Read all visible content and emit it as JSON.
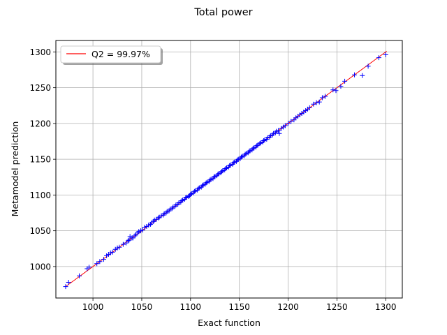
{
  "chart_data": {
    "type": "scatter",
    "title": "Total power",
    "xlabel": "Exact function",
    "ylabel": "Metamodel prediction",
    "xlim": [
      962,
      1317
    ],
    "ylim": [
      956,
      1316
    ],
    "xticks": [
      1000,
      1050,
      1100,
      1150,
      1200,
      1250,
      1300
    ],
    "yticks": [
      1000,
      1050,
      1100,
      1150,
      1200,
      1250,
      1300
    ],
    "grid": true,
    "legend": {
      "placement": "top-left",
      "entries": [
        {
          "label": "Q2 = 99.97%",
          "color": "#ff0000"
        }
      ]
    },
    "reference_line": {
      "x": [
        972,
        1301
      ],
      "y": [
        972,
        1301
      ],
      "color": "#ff0000"
    },
    "series": [
      {
        "marker": "+",
        "color": "#0000ff",
        "points": [
          [
            972,
            972
          ],
          [
            975,
            978
          ],
          [
            986,
            987
          ],
          [
            994,
            997
          ],
          [
            996,
            999
          ],
          [
            1004,
            1004
          ],
          [
            1007,
            1007
          ],
          [
            1011,
            1010
          ],
          [
            1014,
            1015
          ],
          [
            1016,
            1017
          ],
          [
            1018,
            1019
          ],
          [
            1020,
            1020
          ],
          [
            1023,
            1024
          ],
          [
            1025,
            1026
          ],
          [
            1027,
            1027
          ],
          [
            1031,
            1031
          ],
          [
            1034,
            1033
          ],
          [
            1036,
            1036
          ],
          [
            1037,
            1037
          ],
          [
            1038,
            1042
          ],
          [
            1040,
            1040
          ],
          [
            1041,
            1040
          ],
          [
            1043,
            1043
          ],
          [
            1044,
            1045
          ],
          [
            1046,
            1047
          ],
          [
            1047,
            1049
          ],
          [
            1049,
            1050
          ],
          [
            1051,
            1051
          ],
          [
            1053,
            1055
          ],
          [
            1055,
            1056
          ],
          [
            1057,
            1058
          ],
          [
            1059,
            1059
          ],
          [
            1060,
            1061
          ],
          [
            1062,
            1063
          ],
          [
            1063,
            1065
          ],
          [
            1065,
            1066
          ],
          [
            1067,
            1068
          ],
          [
            1068,
            1069
          ],
          [
            1070,
            1071
          ],
          [
            1072,
            1072
          ],
          [
            1073,
            1074
          ],
          [
            1075,
            1075
          ],
          [
            1076,
            1077
          ],
          [
            1078,
            1078
          ],
          [
            1079,
            1080
          ],
          [
            1081,
            1081
          ],
          [
            1082,
            1083
          ],
          [
            1084,
            1084
          ],
          [
            1085,
            1086
          ],
          [
            1087,
            1087
          ],
          [
            1088,
            1089
          ],
          [
            1090,
            1090
          ],
          [
            1091,
            1092
          ],
          [
            1092,
            1093
          ],
          [
            1094,
            1094
          ],
          [
            1095,
            1096
          ],
          [
            1096,
            1097
          ],
          [
            1098,
            1098
          ],
          [
            1099,
            1099
          ],
          [
            1100,
            1101
          ],
          [
            1101,
            1102
          ],
          [
            1103,
            1103
          ],
          [
            1104,
            1105
          ],
          [
            1105,
            1106
          ],
          [
            1107,
            1107
          ],
          [
            1108,
            1109
          ],
          [
            1109,
            1110
          ],
          [
            1111,
            1111
          ],
          [
            1112,
            1113
          ],
          [
            1113,
            1114
          ],
          [
            1115,
            1115
          ],
          [
            1116,
            1117
          ],
          [
            1117,
            1118
          ],
          [
            1119,
            1119
          ],
          [
            1120,
            1121
          ],
          [
            1121,
            1122
          ],
          [
            1123,
            1123
          ],
          [
            1124,
            1125
          ],
          [
            1125,
            1126
          ],
          [
            1127,
            1127
          ],
          [
            1128,
            1129
          ],
          [
            1129,
            1130
          ],
          [
            1131,
            1131
          ],
          [
            1132,
            1133
          ],
          [
            1133,
            1134
          ],
          [
            1135,
            1135
          ],
          [
            1136,
            1137
          ],
          [
            1137,
            1138
          ],
          [
            1139,
            1139
          ],
          [
            1140,
            1141
          ],
          [
            1141,
            1142
          ],
          [
            1143,
            1143
          ],
          [
            1144,
            1145
          ],
          [
            1145,
            1146
          ],
          [
            1147,
            1147
          ],
          [
            1148,
            1149
          ],
          [
            1149,
            1150
          ],
          [
            1151,
            1151
          ],
          [
            1152,
            1153
          ],
          [
            1153,
            1154
          ],
          [
            1155,
            1155
          ],
          [
            1156,
            1157
          ],
          [
            1157,
            1158
          ],
          [
            1159,
            1159
          ],
          [
            1160,
            1161
          ],
          [
            1161,
            1162
          ],
          [
            1163,
            1163
          ],
          [
            1164,
            1165
          ],
          [
            1165,
            1166
          ],
          [
            1167,
            1167
          ],
          [
            1168,
            1169
          ],
          [
            1169,
            1170
          ],
          [
            1171,
            1172
          ],
          [
            1172,
            1173
          ],
          [
            1174,
            1174
          ],
          [
            1175,
            1176
          ],
          [
            1176,
            1177
          ],
          [
            1178,
            1178
          ],
          [
            1179,
            1180
          ],
          [
            1181,
            1181
          ],
          [
            1182,
            1183
          ],
          [
            1184,
            1184
          ],
          [
            1185,
            1186
          ],
          [
            1187,
            1187
          ],
          [
            1188,
            1189
          ],
          [
            1190,
            1190
          ],
          [
            1191,
            1186
          ],
          [
            1193,
            1193
          ],
          [
            1195,
            1195
          ],
          [
            1197,
            1197
          ],
          [
            1200,
            1200
          ],
          [
            1203,
            1203
          ],
          [
            1206,
            1205
          ],
          [
            1208,
            1208
          ],
          [
            1210,
            1210
          ],
          [
            1212,
            1212
          ],
          [
            1214,
            1214
          ],
          [
            1216,
            1216
          ],
          [
            1218,
            1218
          ],
          [
            1220,
            1220
          ],
          [
            1222,
            1222
          ],
          [
            1226,
            1227
          ],
          [
            1229,
            1229
          ],
          [
            1232,
            1230
          ],
          [
            1235,
            1236
          ],
          [
            1238,
            1238
          ],
          [
            1246,
            1247
          ],
          [
            1249,
            1246
          ],
          [
            1254,
            1252
          ],
          [
            1258,
            1259
          ],
          [
            1268,
            1268
          ],
          [
            1276,
            1267
          ],
          [
            1282,
            1280
          ],
          [
            1293,
            1292
          ],
          [
            1300,
            1296
          ]
        ]
      }
    ]
  }
}
